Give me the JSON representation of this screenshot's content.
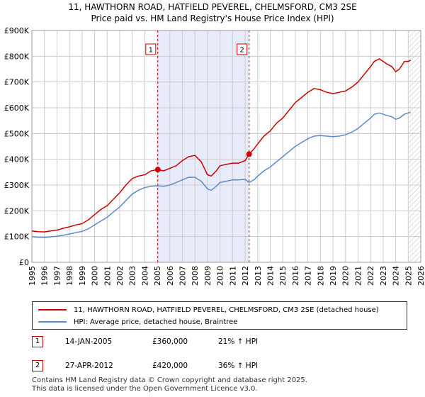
{
  "title_line1": "11, HAWTHORN ROAD, HATFIELD PEVEREL, CHELMSFORD, CM3 2SE",
  "title_line2": "Price paid vs. HM Land Registry's House Price Index (HPI)",
  "colors": {
    "property": "#cc0000",
    "hpi": "#5b8ac9",
    "shade": "#e8ecfa",
    "grid": "#cccccc",
    "vline": "#cc0000"
  },
  "chart_data": {
    "type": "line",
    "ylim": [
      0,
      900000
    ],
    "xlim": [
      1995,
      2026
    ],
    "y_ticks": [
      {
        "value": 0,
        "label": "£0"
      },
      {
        "value": 100000,
        "label": "£100K"
      },
      {
        "value": 200000,
        "label": "£200K"
      },
      {
        "value": 300000,
        "label": "£300K"
      },
      {
        "value": 400000,
        "label": "£400K"
      },
      {
        "value": 500000,
        "label": "£500K"
      },
      {
        "value": 600000,
        "label": "£600K"
      },
      {
        "value": 700000,
        "label": "£700K"
      },
      {
        "value": 800000,
        "label": "£800K"
      },
      {
        "value": 900000,
        "label": "£900K"
      }
    ],
    "x_ticks": [
      "1995",
      "1996",
      "1997",
      "1998",
      "1999",
      "2000",
      "2001",
      "2002",
      "2003",
      "2004",
      "2005",
      "2006",
      "2007",
      "2008",
      "2009",
      "2010",
      "2011",
      "2012",
      "2013",
      "2014",
      "2015",
      "2016",
      "2017",
      "2018",
      "2019",
      "2020",
      "2021",
      "2022",
      "2023",
      "2024",
      "2025",
      "2026"
    ],
    "shaded_range": [
      2005.04,
      2012.32
    ],
    "hatched_from": 2025.0,
    "markers": [
      {
        "label": "1",
        "x": 2005.04,
        "y": 360000
      },
      {
        "label": "2",
        "x": 2012.32,
        "y": 420000
      }
    ],
    "series": [
      {
        "name": "11, HAWTHORN ROAD, HATFIELD PEVEREL, CHELMSFORD, CM3 2SE (detached house)",
        "color": "#cc0000",
        "x": [
          1995,
          1995.5,
          1996,
          1996.5,
          1997,
          1997.5,
          1998,
          1998.5,
          1999,
          1999.5,
          2000,
          2000.5,
          2001,
          2001.5,
          2002,
          2002.5,
          2003,
          2003.5,
          2004,
          2004.5,
          2005.04,
          2005.5,
          2006,
          2006.5,
          2007,
          2007.5,
          2008,
          2008.5,
          2009,
          2009.3,
          2009.7,
          2010,
          2010.5,
          2011,
          2011.5,
          2012,
          2012.32,
          2012.7,
          2013,
          2013.5,
          2014,
          2014.5,
          2015,
          2015.5,
          2016,
          2016.5,
          2017,
          2017.5,
          2018,
          2018.5,
          2019,
          2019.5,
          2020,
          2020.5,
          2021,
          2021.5,
          2022,
          2022.3,
          2022.7,
          2023,
          2023.3,
          2023.7,
          2024,
          2024.3,
          2024.7,
          2025,
          2025.2
        ],
        "values": [
          122000,
          119000,
          118000,
          122000,
          125000,
          132000,
          138000,
          145000,
          150000,
          165000,
          185000,
          205000,
          220000,
          245000,
          270000,
          300000,
          325000,
          335000,
          340000,
          355000,
          360000,
          355000,
          365000,
          375000,
          395000,
          410000,
          415000,
          390000,
          340000,
          335000,
          355000,
          375000,
          380000,
          385000,
          385000,
          395000,
          420000,
          440000,
          460000,
          490000,
          510000,
          540000,
          560000,
          590000,
          620000,
          640000,
          660000,
          675000,
          670000,
          660000,
          655000,
          660000,
          665000,
          680000,
          700000,
          730000,
          760000,
          780000,
          790000,
          780000,
          770000,
          760000,
          740000,
          750000,
          780000,
          780000,
          785000
        ]
      },
      {
        "name": "HPI: Average price, detached house, Braintree",
        "color": "#5b8ac9",
        "x": [
          1995,
          1995.5,
          1996,
          1996.5,
          1997,
          1997.5,
          1998,
          1998.5,
          1999,
          1999.5,
          2000,
          2000.5,
          2001,
          2001.5,
          2002,
          2002.5,
          2003,
          2003.5,
          2004,
          2004.5,
          2005.04,
          2005.5,
          2006,
          2006.5,
          2007,
          2007.5,
          2008,
          2008.5,
          2009,
          2009.3,
          2009.7,
          2010,
          2010.5,
          2011,
          2011.5,
          2012,
          2012.32,
          2012.7,
          2013,
          2013.5,
          2014,
          2014.5,
          2015,
          2015.5,
          2016,
          2016.5,
          2017,
          2017.5,
          2018,
          2018.5,
          2019,
          2019.5,
          2020,
          2020.5,
          2021,
          2021.5,
          2022,
          2022.3,
          2022.7,
          2023,
          2023.3,
          2023.7,
          2024,
          2024.3,
          2024.7,
          2025,
          2025.2
        ],
        "values": [
          100000,
          97000,
          96000,
          99000,
          101000,
          105000,
          110000,
          115000,
          120000,
          130000,
          145000,
          160000,
          175000,
          195000,
          215000,
          240000,
          265000,
          280000,
          290000,
          295000,
          297000,
          295000,
          300000,
          310000,
          320000,
          330000,
          330000,
          315000,
          285000,
          280000,
          295000,
          310000,
          315000,
          320000,
          320000,
          322000,
          310000,
          320000,
          335000,
          355000,
          370000,
          390000,
          410000,
          430000,
          450000,
          465000,
          480000,
          490000,
          492000,
          490000,
          488000,
          490000,
          495000,
          505000,
          520000,
          540000,
          560000,
          575000,
          580000,
          575000,
          570000,
          565000,
          555000,
          560000,
          575000,
          580000,
          582000
        ]
      }
    ]
  },
  "legend": {
    "property_label": "11, HAWTHORN ROAD, HATFIELD PEVEREL, CHELMSFORD, CM3 2SE (detached house)",
    "hpi_label": "HPI: Average price, detached house, Braintree"
  },
  "transactions": [
    {
      "num": "1",
      "date": "14-JAN-2005",
      "price": "£360,000",
      "hpi": "21% ↑ HPI"
    },
    {
      "num": "2",
      "date": "27-APR-2012",
      "price": "£420,000",
      "hpi": "36% ↑ HPI"
    }
  ],
  "footer_line1": "Contains HM Land Registry data © Crown copyright and database right 2025.",
  "footer_line2": "This data is licensed under the Open Government Licence v3.0."
}
